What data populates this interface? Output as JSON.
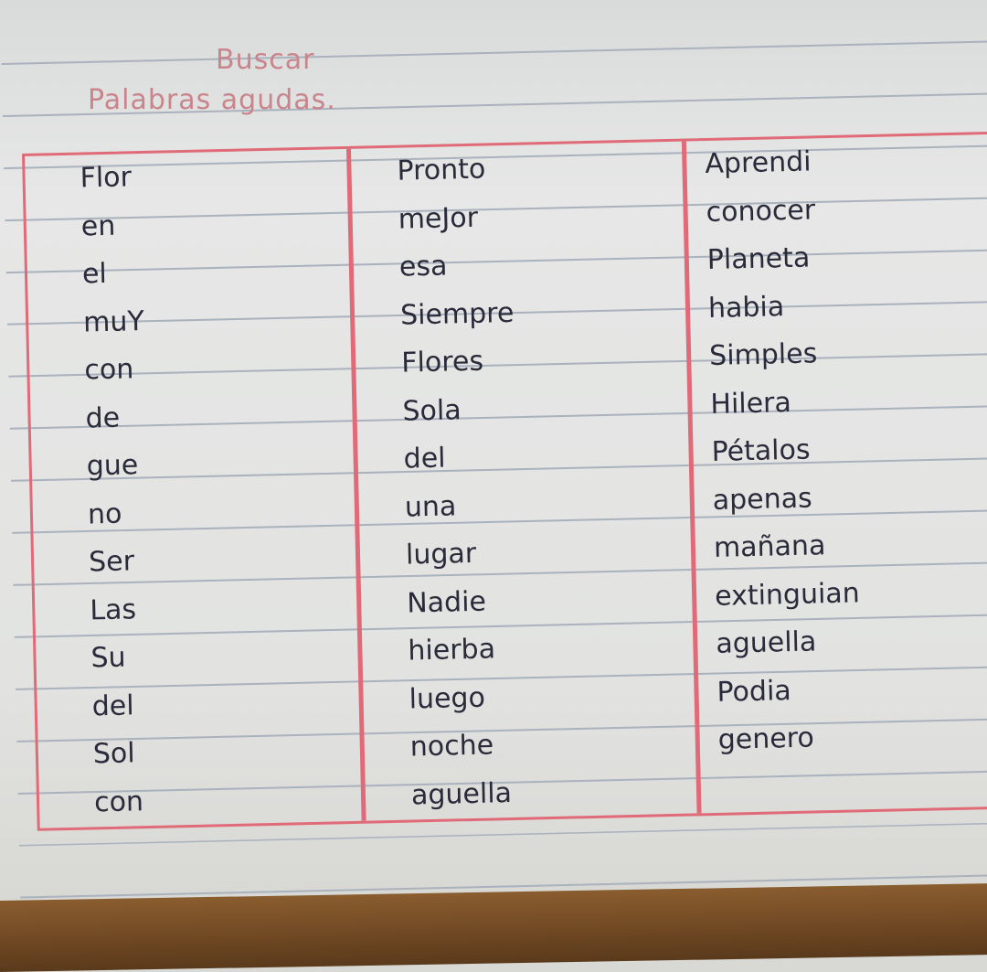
{
  "heading": {
    "line1": "Buscar",
    "line2": "Palabras agudas."
  },
  "columns": [
    [
      "Flor",
      "en",
      "el",
      "muY",
      "con",
      "de",
      "gue",
      "no",
      "Ser",
      "Las",
      "Su",
      "del",
      "Sol",
      "con"
    ],
    [
      "Pronto",
      "meJor",
      "esa",
      "Siempre",
      "Flores",
      "Sola",
      "del",
      "una",
      "lugar",
      "Nadie",
      "hierba",
      "luego",
      "noche",
      "aguella"
    ],
    [
      "Aprendi",
      "conocer",
      "Planeta",
      "habia",
      "Simples",
      "Hilera",
      "Pétalos",
      "apenas",
      "mañana",
      "extinguian",
      "aguella",
      "Podia",
      "genero"
    ]
  ],
  "colors": {
    "ink": "#2a2a3a",
    "red_lines": "#e06a78",
    "paper": "#e4e5e3",
    "wood": "#6e4722"
  }
}
